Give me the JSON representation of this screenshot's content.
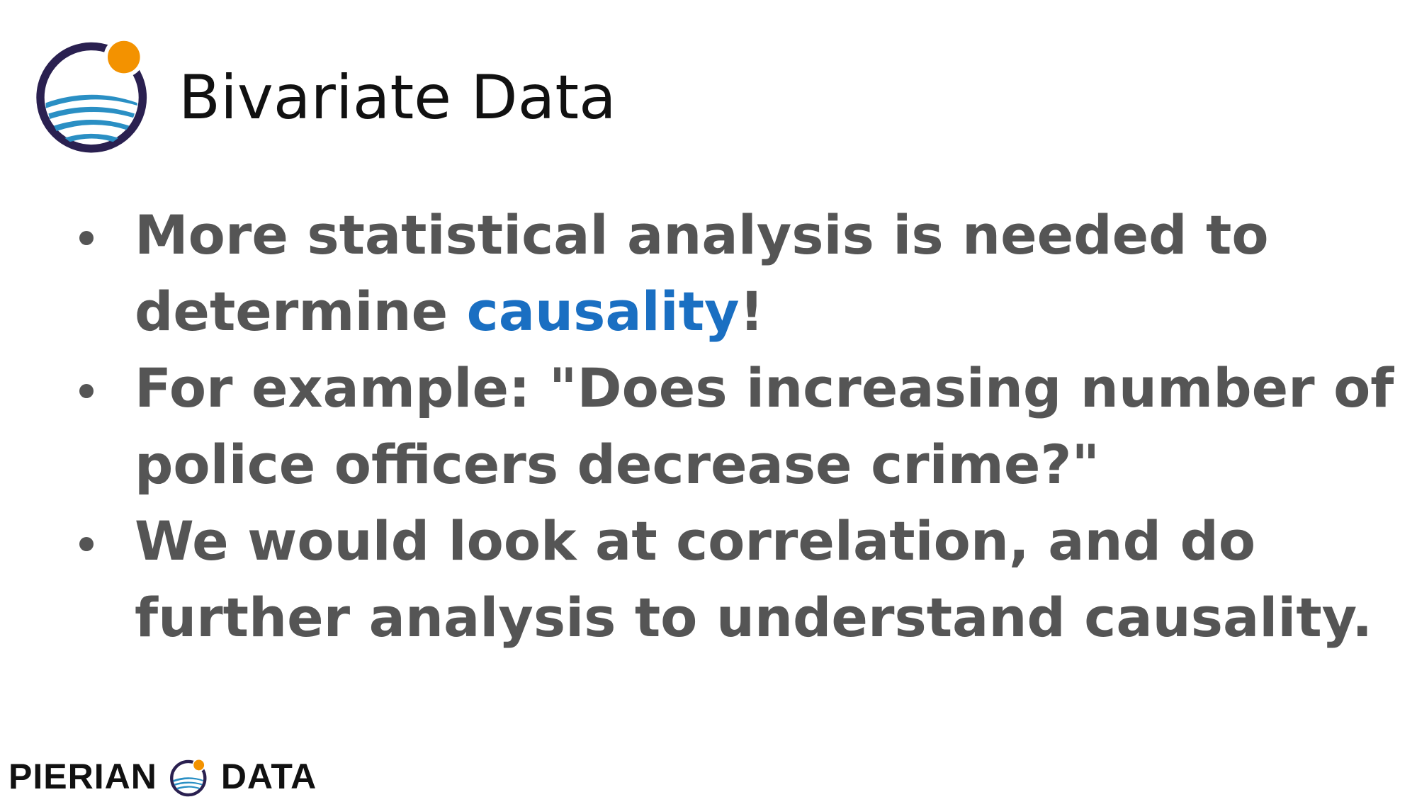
{
  "slide": {
    "title": "Bivariate Data",
    "bullets": [
      {
        "before": "More statistical analysis is needed to determine ",
        "highlight": "causality",
        "after": "!"
      },
      {
        "before": "For example: \"Does increasing number of police officers decrease crime?\"",
        "highlight": "",
        "after": ""
      },
      {
        "before": "We would look at correlation, and do further analysis to understand causality.",
        "highlight": "",
        "after": ""
      }
    ]
  },
  "footer": {
    "brand_left": "PIERIAN",
    "brand_right": "DATA"
  },
  "colors": {
    "highlight": "#1a6fc2",
    "body_text": "#555555",
    "logo_ring": "#2a2050",
    "logo_sun": "#f39200",
    "logo_wave": "#2a8fc4"
  },
  "icons": [
    "pierian-data-logo-icon",
    "bullet-dot-icon"
  ]
}
